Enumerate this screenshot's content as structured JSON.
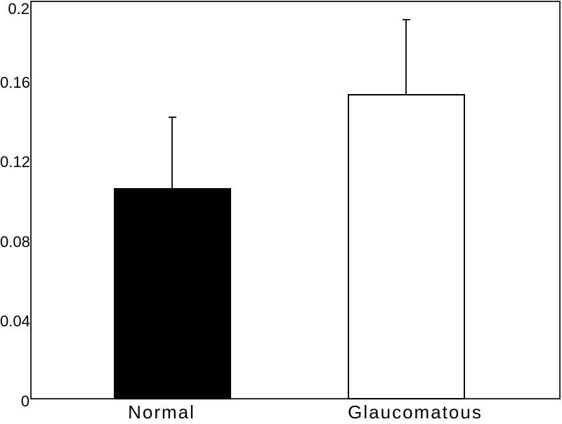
{
  "chart_data": {
    "type": "bar",
    "title": "",
    "xlabel": "",
    "ylabel": "",
    "categories": [
      "Normal",
      "Glaucomatous"
    ],
    "values": [
      0.106,
      0.153
    ],
    "error_plus": [
      0.036,
      0.038
    ],
    "error_bars": "upper-only",
    "bar_fills": [
      "#000000",
      "#ffffff"
    ],
    "bar_border_color": "#000000",
    "ylim": [
      0,
      0.2
    ],
    "yticks": [
      0,
      0.04,
      0.08,
      0.12,
      0.16,
      0.2
    ],
    "ytick_labels": [
      "0",
      "0.04",
      "0.08",
      "0.12",
      "0.16",
      "0.2"
    ],
    "grid": false,
    "legend": "none",
    "plot_background": "#ffffff",
    "axis_border_color": "#2a2a2a"
  }
}
